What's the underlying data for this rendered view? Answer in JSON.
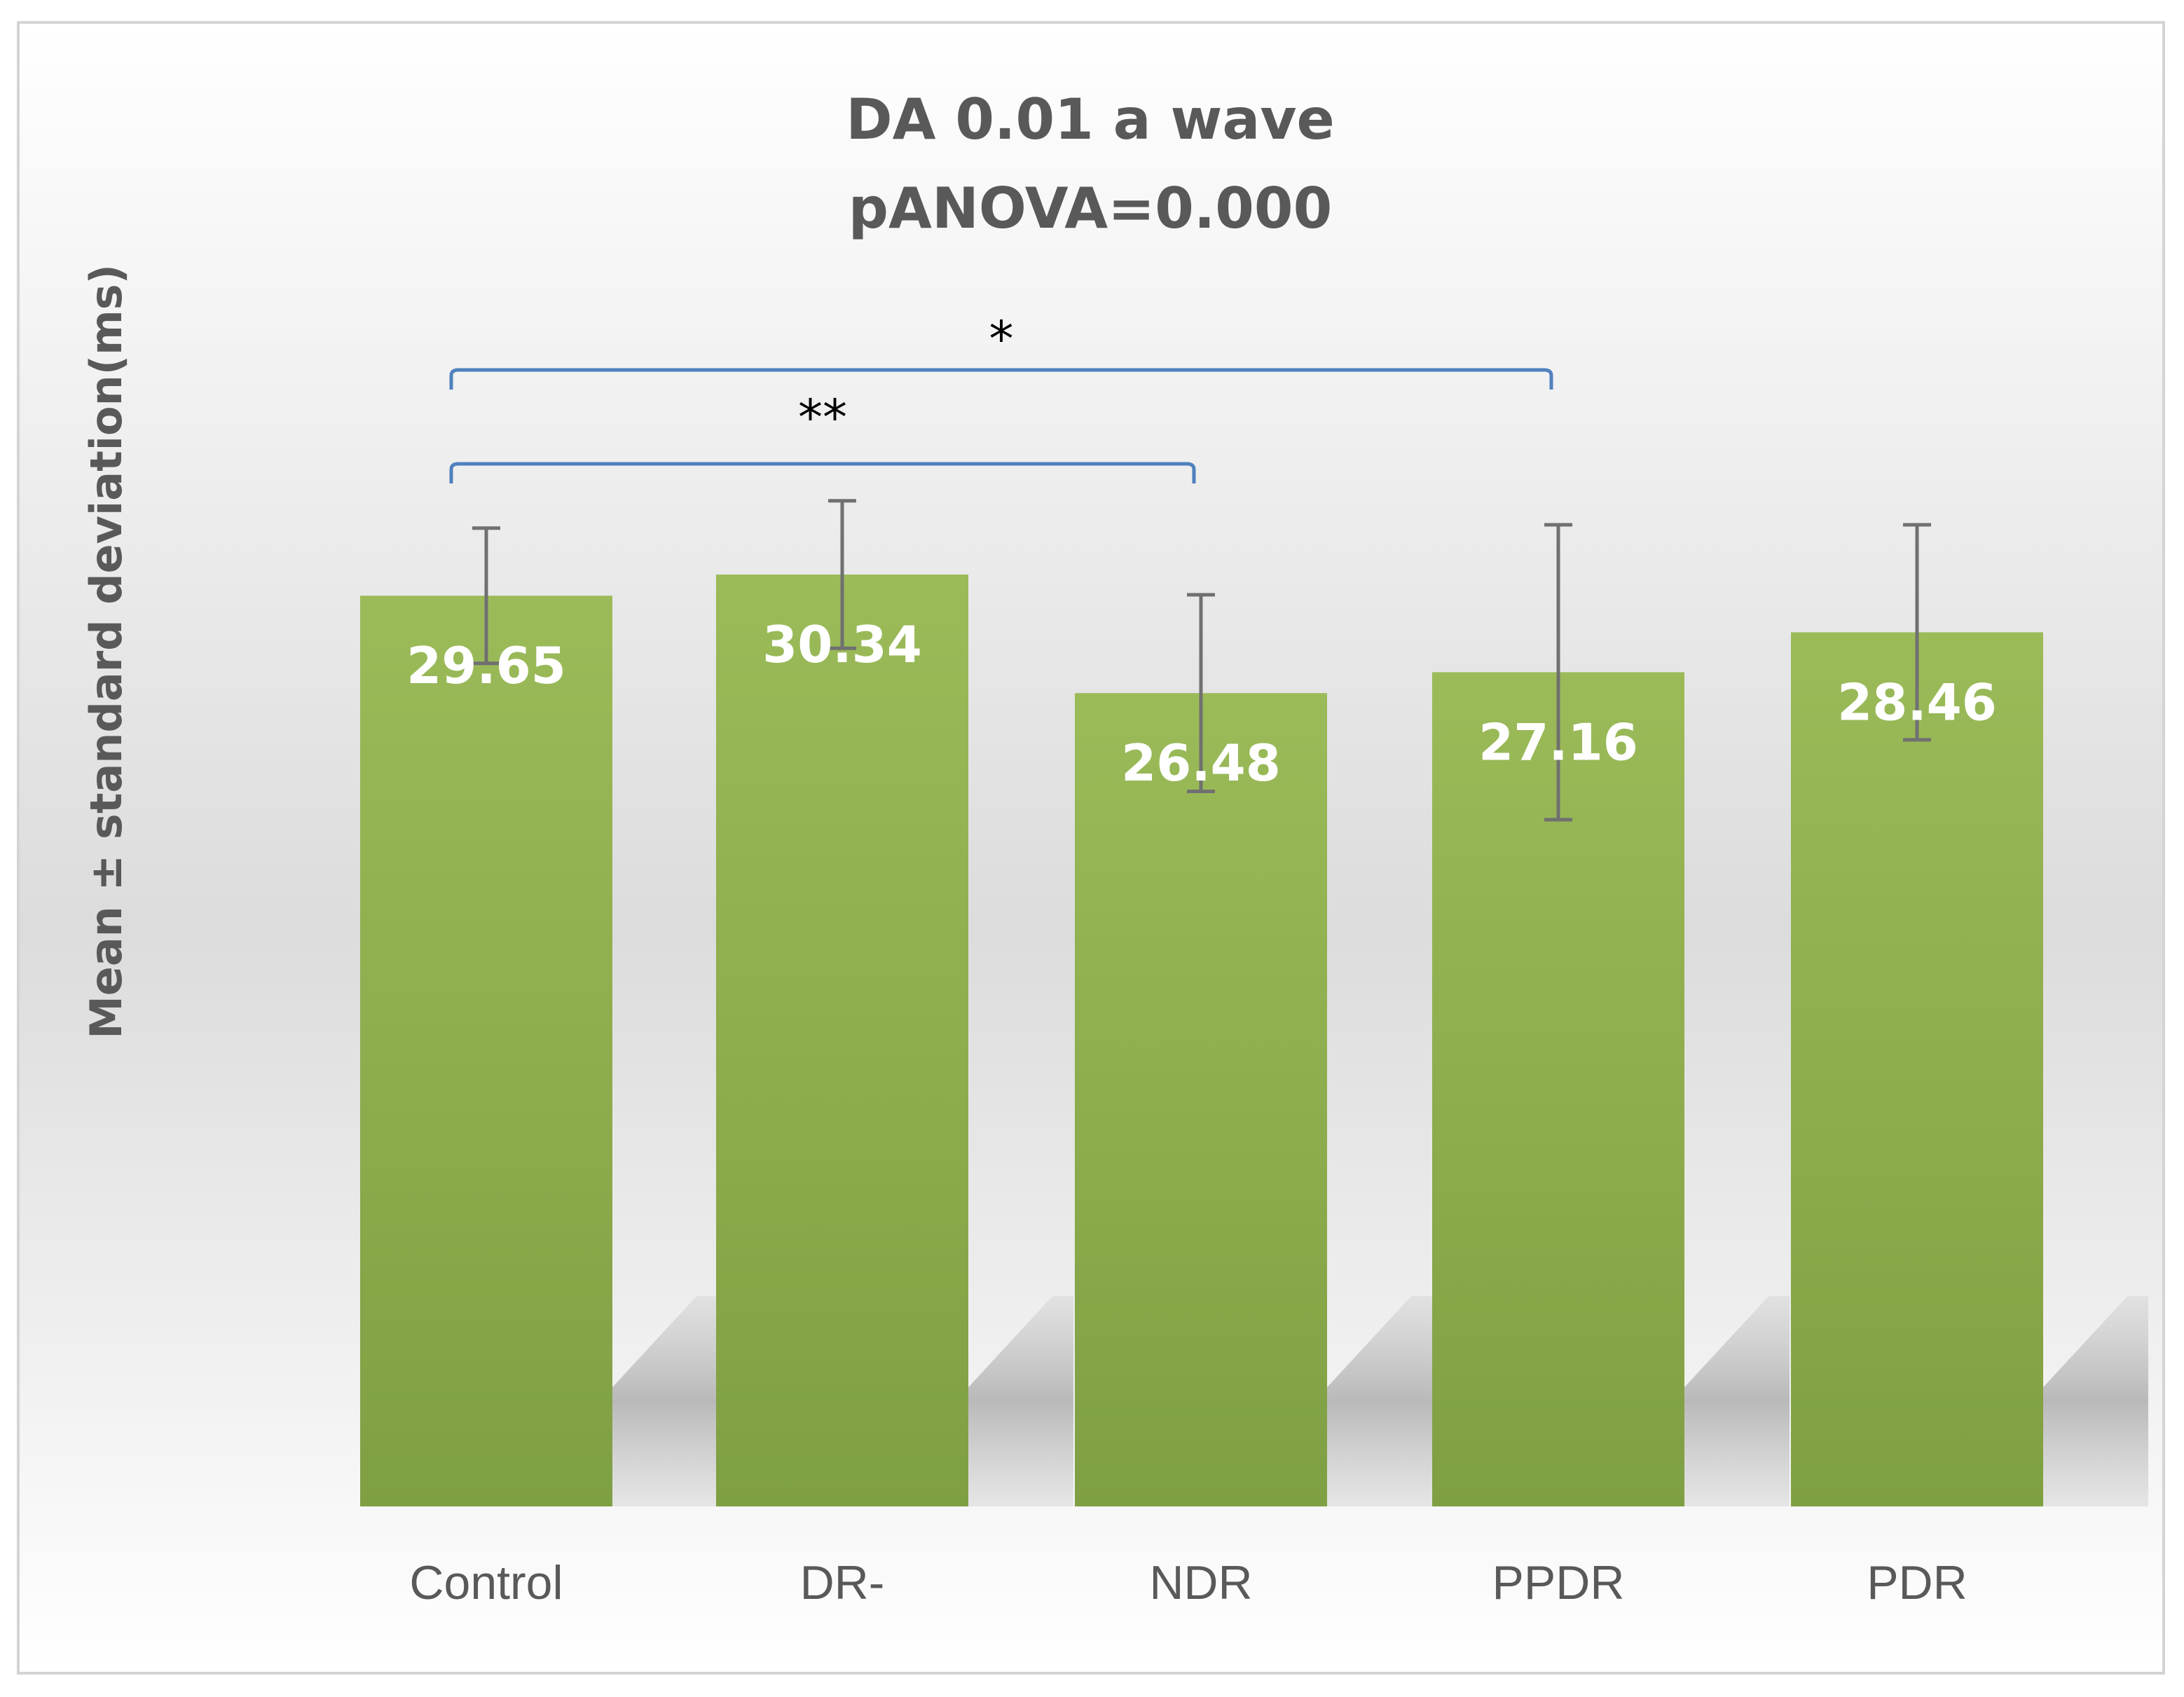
{
  "chart_data": {
    "type": "bar",
    "title": [
      "DA 0.01 a wave",
      "pANOVA=0.000"
    ],
    "ylabel": "Mean ± standard deviation(ms)",
    "xlabel": "",
    "categories": [
      "Control",
      "DR-",
      "NDR",
      "PPDR",
      "PDR"
    ],
    "values": [
      29.65,
      30.34,
      26.48,
      27.16,
      28.46
    ],
    "data_labels": [
      "29.65",
      "30.34",
      "26.48",
      "27.16",
      "28.46"
    ],
    "error_bars": [
      2.2,
      2.4,
      3.2,
      4.8,
      3.5
    ],
    "ylim": [
      0,
      36
    ],
    "grid": false,
    "legend": "none",
    "bar_color_top": "#9bbb59",
    "bar_color_bottom": "#7f9f43",
    "error_bar_color": "#707070",
    "bracket_color": "#4f81bd",
    "significance": [
      {
        "from": "Control",
        "to": "PPDR",
        "label": "*"
      },
      {
        "from": "Control",
        "to": "NDR",
        "label": "**"
      }
    ]
  }
}
